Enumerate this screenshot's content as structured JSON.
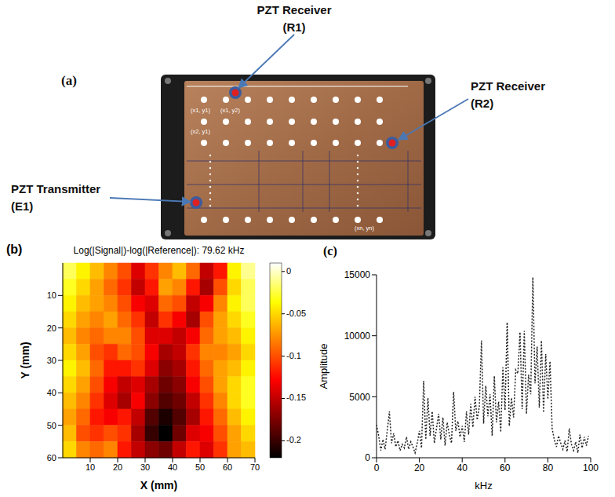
{
  "diagram": {
    "panel_label": "(a)",
    "callouts": [
      {
        "lines": [
          "PZT Receiver",
          "(R1)"
        ]
      },
      {
        "lines": [
          "PZT Receiver",
          "(R2)"
        ]
      },
      {
        "lines": [
          "PZT Transmitter",
          "(E1)"
        ]
      }
    ],
    "point_labels": [
      "(x1, y1)",
      "(x1, y2)",
      "(x2, y1)",
      "(xn, yn)"
    ]
  },
  "chart_data": [
    {
      "type": "heatmap",
      "panel_label": "(b)",
      "title": "Log(|Signal|)-log(|Reference|): 79.62 kHz",
      "x_label": "X (mm)",
      "y_label": "Y (mm)",
      "xlim": [
        0,
        70
      ],
      "ylim": [
        0,
        60
      ],
      "xticks": [
        10,
        20,
        30,
        40,
        50,
        60,
        70
      ],
      "yticks": [
        10,
        20,
        30,
        40,
        50,
        60
      ],
      "x": [
        2.5,
        7.5,
        12.5,
        17.5,
        22.5,
        27.5,
        32.5,
        37.5,
        42.5,
        47.5,
        52.5,
        57.5,
        62.5,
        67.5
      ],
      "y": [
        2.5,
        7.5,
        12.5,
        17.5,
        22.5,
        27.5,
        32.5,
        37.5,
        42.5,
        47.5,
        52.5,
        57.5
      ],
      "values": [
        [
          -0.02,
          -0.04,
          -0.06,
          -0.08,
          -0.1,
          -0.14,
          -0.11,
          -0.08,
          -0.06,
          -0.09,
          -0.15,
          -0.12,
          -0.04,
          -0.01
        ],
        [
          -0.03,
          -0.05,
          -0.07,
          -0.09,
          -0.11,
          -0.15,
          -0.12,
          -0.07,
          -0.08,
          -0.12,
          -0.16,
          -0.1,
          -0.05,
          -0.02
        ],
        [
          -0.04,
          -0.06,
          -0.07,
          -0.08,
          -0.1,
          -0.13,
          -0.14,
          -0.09,
          -0.1,
          -0.15,
          -0.13,
          -0.08,
          -0.04,
          -0.02
        ],
        [
          -0.05,
          -0.07,
          -0.08,
          -0.07,
          -0.09,
          -0.11,
          -0.15,
          -0.11,
          -0.13,
          -0.16,
          -0.1,
          -0.07,
          -0.05,
          -0.03
        ],
        [
          -0.06,
          -0.08,
          -0.09,
          -0.08,
          -0.08,
          -0.1,
          -0.14,
          -0.14,
          -0.15,
          -0.13,
          -0.09,
          -0.07,
          -0.06,
          -0.04
        ],
        [
          -0.05,
          -0.07,
          -0.1,
          -0.11,
          -0.09,
          -0.1,
          -0.13,
          -0.16,
          -0.15,
          -0.11,
          -0.08,
          -0.08,
          -0.07,
          -0.05
        ],
        [
          -0.04,
          -0.06,
          -0.09,
          -0.12,
          -0.12,
          -0.11,
          -0.14,
          -0.17,
          -0.16,
          -0.12,
          -0.09,
          -0.07,
          -0.06,
          -0.04
        ],
        [
          -0.05,
          -0.07,
          -0.1,
          -0.13,
          -0.15,
          -0.14,
          -0.16,
          -0.18,
          -0.17,
          -0.13,
          -0.1,
          -0.07,
          -0.05,
          -0.03
        ],
        [
          -0.06,
          -0.08,
          -0.11,
          -0.14,
          -0.16,
          -0.13,
          -0.17,
          -0.19,
          -0.18,
          -0.15,
          -0.11,
          -0.08,
          -0.05,
          -0.03
        ],
        [
          -0.07,
          -0.09,
          -0.12,
          -0.13,
          -0.12,
          -0.15,
          -0.19,
          -0.21,
          -0.19,
          -0.16,
          -0.12,
          -0.09,
          -0.06,
          -0.04
        ],
        [
          -0.06,
          -0.1,
          -0.11,
          -0.1,
          -0.11,
          -0.16,
          -0.2,
          -0.22,
          -0.18,
          -0.14,
          -0.13,
          -0.1,
          -0.07,
          -0.05
        ],
        [
          -0.05,
          -0.08,
          -0.09,
          -0.08,
          -0.12,
          -0.15,
          -0.17,
          -0.18,
          -0.15,
          -0.12,
          -0.14,
          -0.11,
          -0.07,
          -0.06
        ]
      ],
      "colorbar": {
        "range": [
          -0.22,
          0.01
        ],
        "ticks": [
          0,
          -0.05,
          -0.1,
          -0.15,
          -0.2
        ]
      }
    },
    {
      "type": "line",
      "panel_label": "(c)",
      "x_label": "kHz",
      "y_label": "Amplitude",
      "xlim": [
        0,
        100
      ],
      "ylim": [
        0,
        15000
      ],
      "xticks": [
        0,
        20,
        40,
        60,
        80,
        100
      ],
      "yticks": [
        0,
        5000,
        10000,
        15000
      ],
      "color": "#222222",
      "line_style": "dotted",
      "x": [
        0,
        1,
        2,
        3,
        4,
        5,
        6,
        7,
        8,
        9,
        10,
        11,
        12,
        13,
        14,
        15,
        16,
        17,
        18,
        19,
        20,
        21,
        22,
        23,
        24,
        25,
        26,
        27,
        28,
        29,
        30,
        31,
        32,
        33,
        34,
        35,
        36,
        37,
        38,
        39,
        40,
        41,
        42,
        43,
        44,
        45,
        46,
        47,
        48,
        49,
        50,
        51,
        52,
        53,
        54,
        55,
        56,
        57,
        58,
        59,
        60,
        61,
        62,
        63,
        64,
        65,
        66,
        67,
        68,
        69,
        70,
        71,
        72,
        73,
        74,
        75,
        76,
        77,
        78,
        79,
        80,
        81,
        82,
        83,
        84,
        85,
        86,
        87,
        88,
        89,
        90,
        91,
        92,
        93,
        94,
        95,
        96,
        97,
        98,
        99
      ],
      "values": [
        2700,
        1800,
        600,
        1500,
        700,
        2200,
        3800,
        1200,
        2000,
        900,
        1400,
        600,
        1100,
        800,
        1700,
        700,
        1300,
        900,
        400,
        1200,
        2200,
        800,
        6300,
        1500,
        4900,
        1800,
        3800,
        1200,
        2400,
        3600,
        1500,
        3300,
        1000,
        2900,
        1900,
        1200,
        5400,
        2200,
        3000,
        1700,
        2600,
        1300,
        3800,
        1900,
        4400,
        2500,
        5000,
        3100,
        4200,
        9600,
        2800,
        5900,
        3400,
        5200,
        1800,
        6700,
        2900,
        4600,
        2100,
        7400,
        3900,
        11100,
        2600,
        4900,
        3300,
        7200,
        6900,
        10300,
        4000,
        10400,
        3600,
        6800,
        5200,
        14800,
        6100,
        9100,
        4100,
        9600,
        3700,
        8500,
        4800,
        7900,
        2400,
        1500,
        900,
        1800,
        1200,
        700,
        1400,
        500,
        2400,
        1100,
        600,
        1300,
        400,
        1900,
        800,
        1700,
        1000,
        1800
      ]
    }
  ]
}
